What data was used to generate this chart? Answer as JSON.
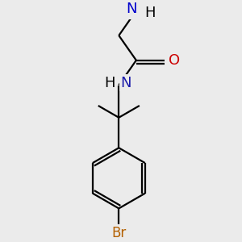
{
  "bg_color": "#ebebeb",
  "atom_colors": {
    "C": "#000000",
    "H": "#000000",
    "N_amide": "#1a1aaa",
    "N_amine": "#0000cc",
    "O": "#cc0000",
    "Br": "#b36000"
  },
  "bond_color": "#000000",
  "bond_width": 1.6,
  "figsize": [
    3.0,
    3.0
  ],
  "dpi": 100,
  "font_size": 13,
  "font_size_small": 12
}
